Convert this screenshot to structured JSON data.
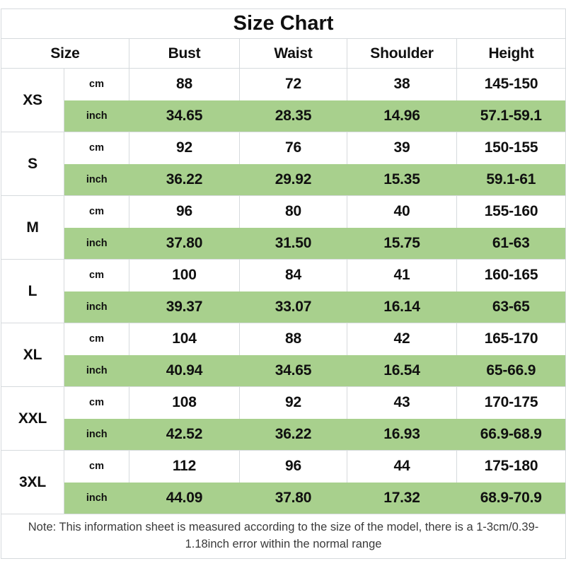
{
  "chart_data": {
    "type": "table",
    "title": "Size Chart",
    "columns": [
      "Size",
      "Bust",
      "Waist",
      "Shoulder",
      "Height"
    ],
    "units": {
      "cm": "cm",
      "inch": "inch"
    },
    "sizes": [
      {
        "label": "XS",
        "cm": [
          "88",
          "72",
          "38",
          "145-150"
        ],
        "inch": [
          "34.65",
          "28.35",
          "14.96",
          "57.1-59.1"
        ]
      },
      {
        "label": "S",
        "cm": [
          "92",
          "76",
          "39",
          "150-155"
        ],
        "inch": [
          "36.22",
          "29.92",
          "15.35",
          "59.1-61"
        ]
      },
      {
        "label": "M",
        "cm": [
          "96",
          "80",
          "40",
          "155-160"
        ],
        "inch": [
          "37.80",
          "31.50",
          "15.75",
          "61-63"
        ]
      },
      {
        "label": "L",
        "cm": [
          "100",
          "84",
          "41",
          "160-165"
        ],
        "inch": [
          "39.37",
          "33.07",
          "16.14",
          "63-65"
        ]
      },
      {
        "label": "XL",
        "cm": [
          "104",
          "88",
          "42",
          "165-170"
        ],
        "inch": [
          "40.94",
          "34.65",
          "16.54",
          "65-66.9"
        ]
      },
      {
        "label": "XXL",
        "cm": [
          "108",
          "92",
          "43",
          "170-175"
        ],
        "inch": [
          "42.52",
          "36.22",
          "16.93",
          "66.9-68.9"
        ]
      },
      {
        "label": "3XL",
        "cm": [
          "112",
          "96",
          "44",
          "175-180"
        ],
        "inch": [
          "44.09",
          "37.80",
          "17.32",
          "68.9-70.9"
        ]
      }
    ],
    "note": "Note: This information sheet is measured according to the size of the model, there is a 1-3cm/0.39-1.18inch error within the normal range",
    "layout_hints": {
      "highlight_rows": "inch",
      "grid": "on"
    }
  },
  "colors": {
    "highlight_green": "#a8d08d",
    "border_gray": "#d6dadd",
    "text_black": "#101010",
    "note_gray": "#3a3a3a"
  }
}
